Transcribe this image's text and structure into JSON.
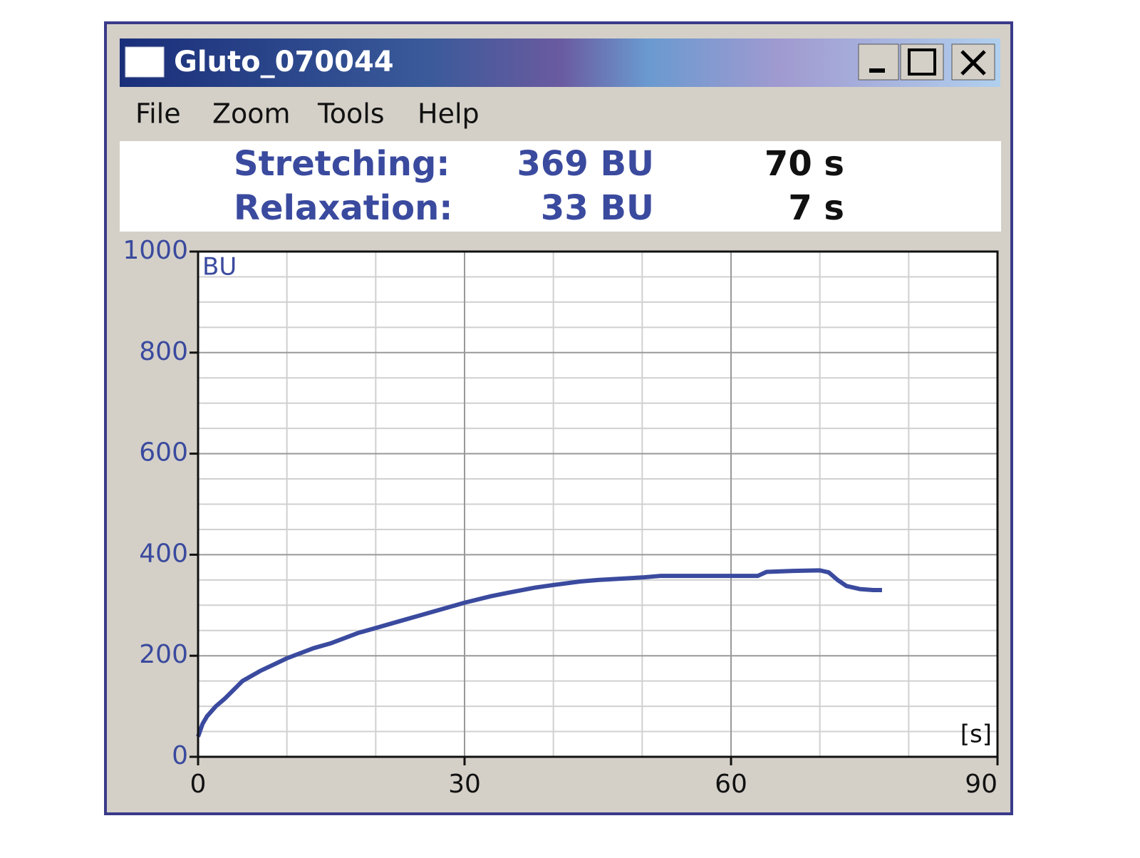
{
  "window": {
    "title": "Gluto_070044",
    "menu": [
      "File",
      "Zoom",
      "Tools",
      "Help"
    ]
  },
  "stats": [
    {
      "label": "Stretching:",
      "value": "369 BU",
      "time": "70 s"
    },
    {
      "label": "Relaxation:",
      "value": "33 BU",
      "time": "7 s"
    }
  ],
  "chart_data": {
    "type": "line",
    "y_label": "BU",
    "x_label": "[s]",
    "xlim": [
      0,
      90
    ],
    "xticks": [
      0,
      30,
      60,
      90
    ],
    "x_minor_ticks": [
      10,
      20,
      40,
      50,
      70,
      80
    ],
    "ylim": [
      0,
      1000
    ],
    "yticks": [
      0,
      200,
      400,
      600,
      800,
      1000
    ],
    "y_minor_ticks": [
      50,
      100,
      150,
      250,
      300,
      350,
      450,
      500,
      550,
      650,
      700,
      750,
      850,
      900,
      950
    ],
    "grid": true,
    "x": [
      0,
      0.5,
      1,
      2,
      3,
      5,
      7,
      10,
      13,
      15,
      18,
      20,
      23,
      25,
      28,
      30,
      33,
      35,
      38,
      40,
      43,
      45,
      48,
      50,
      52,
      55,
      60,
      63,
      64,
      67,
      70,
      71,
      72,
      73,
      74.5,
      76,
      77
    ],
    "series": [
      {
        "color": "#3a4a9e",
        "values": [
          40,
          65,
          80,
          100,
          115,
          150,
          170,
          195,
          215,
          225,
          245,
          255,
          270,
          280,
          295,
          305,
          318,
          325,
          335,
          340,
          347,
          350,
          353,
          355,
          358,
          358,
          358,
          358,
          366,
          368,
          369,
          365,
          350,
          338,
          332,
          330,
          330
        ]
      }
    ]
  }
}
